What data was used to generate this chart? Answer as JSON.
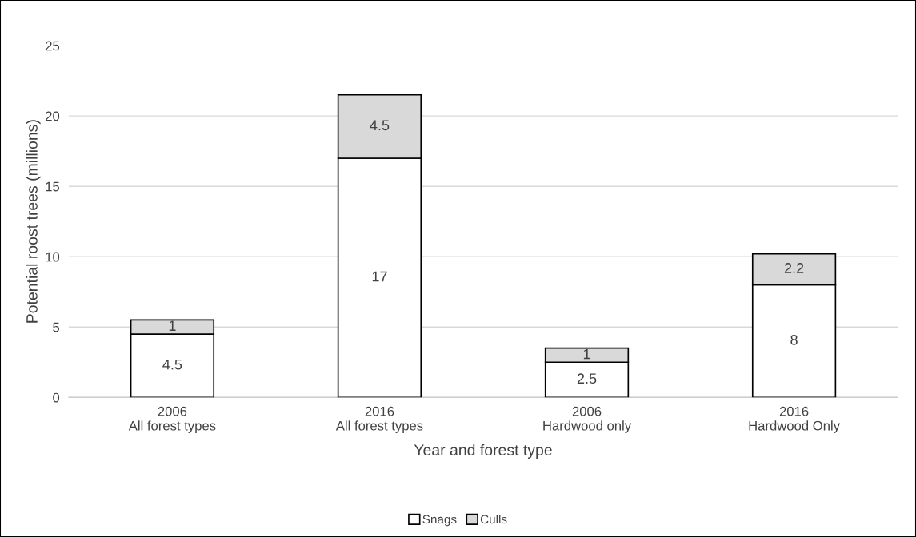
{
  "chart_data": {
    "type": "bar",
    "stacked": true,
    "xlabel": "Year and forest type",
    "ylabel": "Potential roost trees (millions)",
    "categories": [
      "2006\nAll forest types",
      "2016\nAll forest types",
      "2006\nHardwood only",
      "2016\nHardwood Only"
    ],
    "series": [
      {
        "name": "Snags",
        "color": "#ffffff",
        "values": [
          4.5,
          17,
          2.5,
          8
        ]
      },
      {
        "name": "Culls",
        "color": "#d9d9d9",
        "values": [
          1,
          4.5,
          1,
          2.2
        ]
      }
    ],
    "ylim": [
      0,
      25
    ],
    "yticks": [
      0,
      5,
      10,
      15,
      20,
      25
    ],
    "grid": "y",
    "legend": "bottom",
    "data_labels": true
  }
}
